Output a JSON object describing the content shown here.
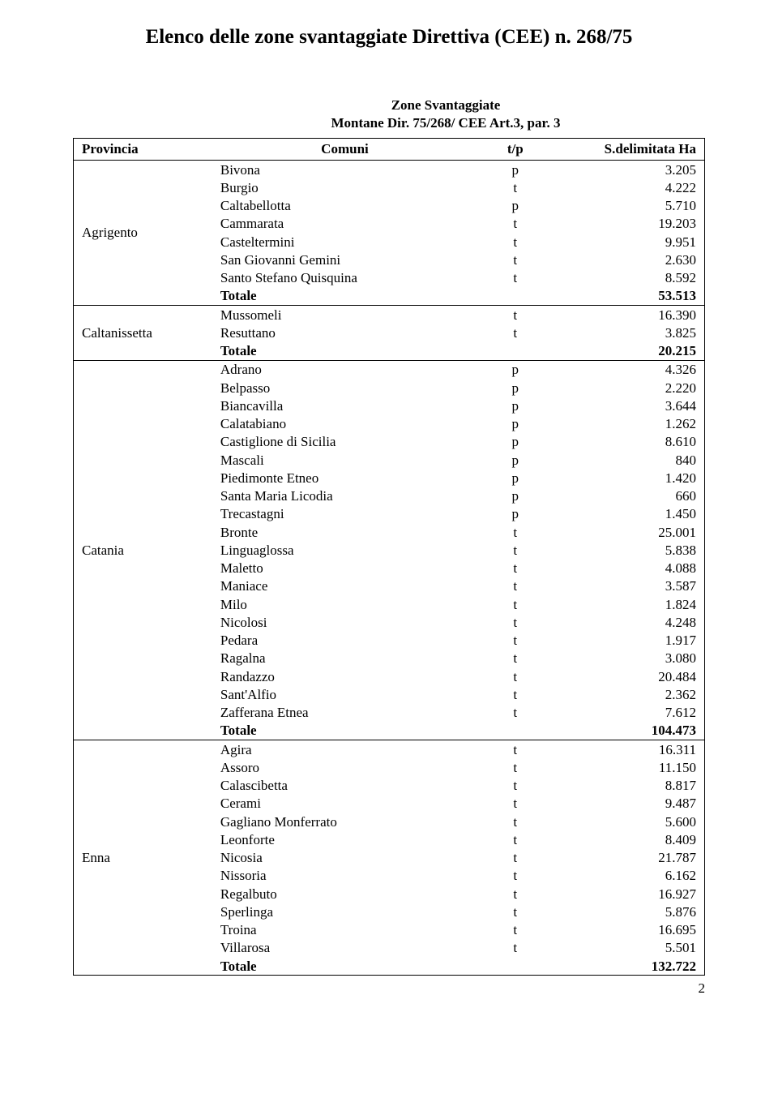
{
  "title": "Elenco delle zone svantaggiate Direttiva (CEE) n. 268/75",
  "subtitle_line1": "Zone  Svantaggiate",
  "subtitle_line2": "Montane Dir. 75/268/ CEE  Art.3, par. 3",
  "headers": {
    "provincia": "Provincia",
    "comuni": "Comuni",
    "tp": "t/p",
    "ha": "S.delimitata  Ha"
  },
  "totale_label": "Totale",
  "page_number": "2",
  "groups": [
    {
      "provincia": "Agrigento",
      "rows": [
        {
          "comune": "Bivona",
          "tp": "p",
          "ha": "3.205"
        },
        {
          "comune": "Burgio",
          "tp": "t",
          "ha": "4.222"
        },
        {
          "comune": "Caltabellotta",
          "tp": "p",
          "ha": "5.710"
        },
        {
          "comune": "Cammarata",
          "tp": "t",
          "ha": "19.203"
        },
        {
          "comune": "Casteltermini",
          "tp": "t",
          "ha": "9.951"
        },
        {
          "comune": "San Giovanni Gemini",
          "tp": "t",
          "ha": "2.630"
        },
        {
          "comune": "Santo Stefano Quisquina",
          "tp": "t",
          "ha": "8.592"
        }
      ],
      "totale": "53.513"
    },
    {
      "provincia": "Caltanissetta",
      "rows": [
        {
          "comune": "Mussomeli",
          "tp": "t",
          "ha": "16.390"
        },
        {
          "comune": "Resuttano",
          "tp": "t",
          "ha": "3.825"
        }
      ],
      "totale": "20.215"
    },
    {
      "provincia": "Catania",
      "rows": [
        {
          "comune": "Adrano",
          "tp": "p",
          "ha": "4.326"
        },
        {
          "comune": "Belpasso",
          "tp": "p",
          "ha": "2.220"
        },
        {
          "comune": "Biancavilla",
          "tp": "p",
          "ha": "3.644"
        },
        {
          "comune": "Calatabiano",
          "tp": "p",
          "ha": "1.262"
        },
        {
          "comune": "Castiglione di Sicilia",
          "tp": "p",
          "ha": "8.610"
        },
        {
          "comune": "Mascali",
          "tp": "p",
          "ha": "840"
        },
        {
          "comune": "Piedimonte Etneo",
          "tp": "p",
          "ha": "1.420"
        },
        {
          "comune": "Santa Maria Licodia",
          "tp": "p",
          "ha": "660"
        },
        {
          "comune": "Trecastagni",
          "tp": "p",
          "ha": "1.450"
        },
        {
          "comune": "Bronte",
          "tp": "t",
          "ha": "25.001"
        },
        {
          "comune": "Linguaglossa",
          "tp": "t",
          "ha": "5.838"
        },
        {
          "comune": "Maletto",
          "tp": "t",
          "ha": "4.088"
        },
        {
          "comune": "Maniace",
          "tp": "t",
          "ha": "3.587"
        },
        {
          "comune": "Milo",
          "tp": "t",
          "ha": "1.824"
        },
        {
          "comune": "Nicolosi",
          "tp": "t",
          "ha": "4.248"
        },
        {
          "comune": "Pedara",
          "tp": "t",
          "ha": "1.917"
        },
        {
          "comune": "Ragalna",
          "tp": "t",
          "ha": "3.080"
        },
        {
          "comune": "Randazzo",
          "tp": "t",
          "ha": "20.484"
        },
        {
          "comune": "Sant'Alfio",
          "tp": "t",
          "ha": "2.362"
        },
        {
          "comune": "Zafferana Etnea",
          "tp": "t",
          "ha": "7.612"
        }
      ],
      "totale": "104.473"
    },
    {
      "provincia": "Enna",
      "rows": [
        {
          "comune": "Agira",
          "tp": "t",
          "ha": "16.311"
        },
        {
          "comune": "Assoro",
          "tp": "t",
          "ha": "11.150"
        },
        {
          "comune": "Calascibetta",
          "tp": "t",
          "ha": "8.817"
        },
        {
          "comune": "Cerami",
          "tp": "t",
          "ha": "9.487"
        },
        {
          "comune": "Gagliano Monferrato",
          "tp": "t",
          "ha": "5.600"
        },
        {
          "comune": "Leonforte",
          "tp": "t",
          "ha": "8.409"
        },
        {
          "comune": "Nicosia",
          "tp": "t",
          "ha": "21.787"
        },
        {
          "comune": "Nissoria",
          "tp": "t",
          "ha": "6.162"
        },
        {
          "comune": "Regalbuto",
          "tp": "t",
          "ha": "16.927"
        },
        {
          "comune": "Sperlinga",
          "tp": "t",
          "ha": "5.876"
        },
        {
          "comune": "Troina",
          "tp": "t",
          "ha": "16.695"
        },
        {
          "comune": "Villarosa",
          "tp": "t",
          "ha": "5.501"
        }
      ],
      "totale": "132.722"
    }
  ]
}
